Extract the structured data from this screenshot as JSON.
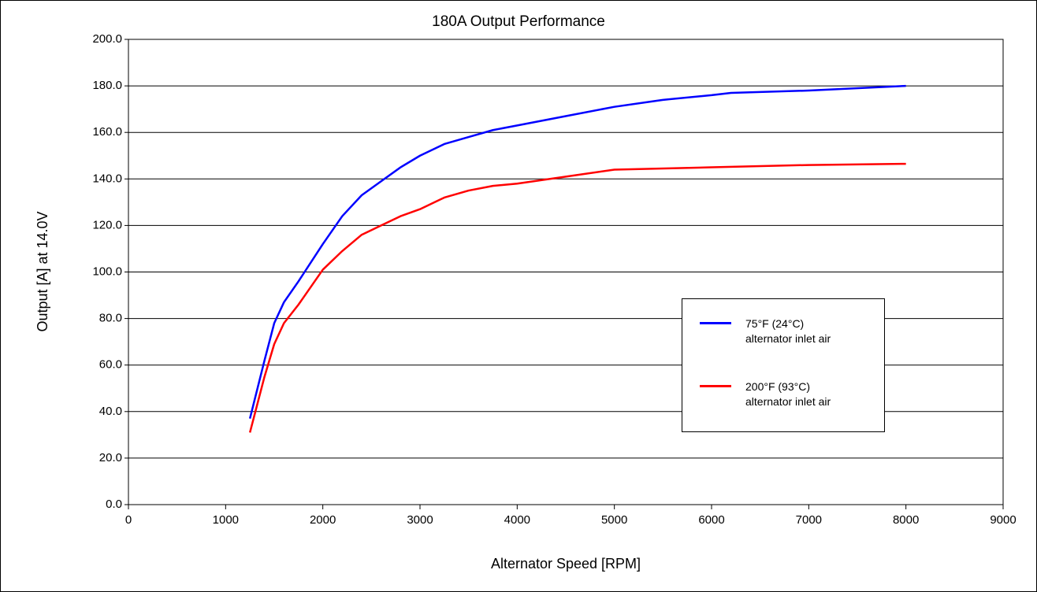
{
  "chart_data": {
    "type": "line",
    "title": "180A Output Performance",
    "x_label": "Alternator Speed [RPM]",
    "y_label": "Output [A] at 14.0V",
    "xlim": [
      0,
      9000
    ],
    "xticks": [
      0,
      1000,
      2000,
      3000,
      4000,
      5000,
      6000,
      7000,
      8000,
      9000
    ],
    "ylim": [
      0,
      200
    ],
    "yticks": [
      {
        "value": 0,
        "label": "0.0"
      },
      {
        "value": 20,
        "label": "20.0"
      },
      {
        "value": 40,
        "label": "40.0"
      },
      {
        "value": 60,
        "label": "60.0"
      },
      {
        "value": 80,
        "label": "80.0"
      },
      {
        "value": 100,
        "label": "100.0"
      },
      {
        "value": 120,
        "label": "120.0"
      },
      {
        "value": 140,
        "label": "140.0"
      },
      {
        "value": 160,
        "label": "160.0"
      },
      {
        "value": 180,
        "label": "180.0"
      },
      {
        "value": 200,
        "label": "200.0"
      }
    ],
    "grid": true,
    "series": [
      {
        "name": "75°F  (24°C)\nalternator inlet air",
        "color": "#0000ff",
        "x": [
          1250,
          1400,
          1500,
          1600,
          1750,
          2000,
          2200,
          2400,
          2600,
          2800,
          3000,
          3250,
          3500,
          3750,
          4000,
          4500,
          5000,
          5500,
          6000,
          6200,
          7000,
          8000
        ],
        "values": [
          37,
          62,
          78,
          87,
          96,
          112,
          124,
          133,
          139,
          145,
          150,
          155,
          158,
          161,
          163,
          167,
          171,
          174,
          176,
          177,
          178,
          180
        ]
      },
      {
        "name": "200°F (93°C)\nalternator inlet air",
        "color": "#ff0000",
        "x": [
          1250,
          1400,
          1500,
          1600,
          1750,
          2000,
          2200,
          2400,
          2600,
          2800,
          3000,
          3250,
          3500,
          3750,
          4000,
          4500,
          5000,
          6000,
          7000,
          8000
        ],
        "values": [
          31,
          55,
          69,
          78,
          86,
          101,
          109,
          116,
          120,
          124,
          127,
          132,
          135,
          137,
          138,
          141,
          144,
          145,
          146,
          146.5
        ]
      }
    ]
  }
}
